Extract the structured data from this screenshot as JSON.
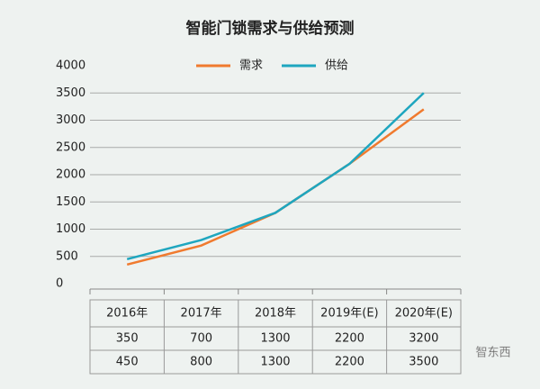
{
  "chart_data": {
    "type": "line",
    "title": "智能门锁需求与供给预测",
    "categories": [
      "2016年",
      "2017年",
      "2018年",
      "2019年(E)",
      "2020年(E)"
    ],
    "series": [
      {
        "name": "需求",
        "color": "#f07a2e",
        "values": [
          350,
          700,
          1300,
          2200,
          3200
        ]
      },
      {
        "name": "供给",
        "color": "#1ea6bf",
        "values": [
          450,
          800,
          1300,
          2200,
          3500
        ]
      }
    ],
    "ylim": [
      0,
      4000
    ],
    "yticks": [
      0,
      500,
      1000,
      1500,
      2000,
      2500,
      3000,
      3500,
      4000
    ],
    "grid": true,
    "legend": "top",
    "watermark": "智东西"
  }
}
